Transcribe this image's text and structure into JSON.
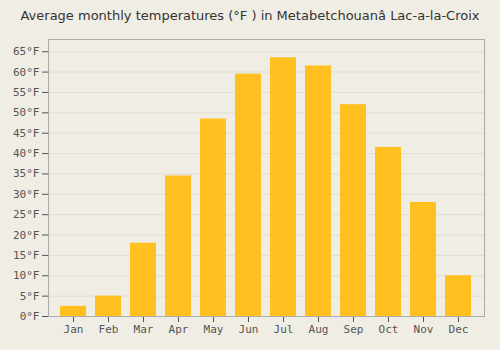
{
  "chart_data": {
    "type": "bar",
    "title": "Average monthly temperatures (°F ) in Metabetchouanâ  Lac-a-la-Croix",
    "categories": [
      "Jan",
      "Feb",
      "Mar",
      "Apr",
      "May",
      "Jun",
      "Jul",
      "Aug",
      "Sep",
      "Oct",
      "Nov",
      "Dec"
    ],
    "values": [
      2.5,
      5,
      18,
      34.5,
      48.5,
      59.5,
      63.5,
      61.5,
      52,
      41.5,
      28,
      10
    ],
    "color": "#FFC020",
    "ylim": [
      0,
      68
    ],
    "yticks": [
      {
        "value": 0,
        "label": "0°F"
      },
      {
        "value": 5,
        "label": "5°F"
      },
      {
        "value": 10,
        "label": "10°F"
      },
      {
        "value": 15,
        "label": "15°F"
      },
      {
        "value": 20,
        "label": "20°F"
      },
      {
        "value": 25,
        "label": "25°F"
      },
      {
        "value": 30,
        "label": "30°F"
      },
      {
        "value": 35,
        "label": "35°F"
      },
      {
        "value": 40,
        "label": "40°F"
      },
      {
        "value": 45,
        "label": "45°F"
      },
      {
        "value": 50,
        "label": "50°F"
      },
      {
        "value": 55,
        "label": "55°F"
      },
      {
        "value": 60,
        "label": "60°F"
      },
      {
        "value": 65,
        "label": "65°F"
      }
    ],
    "grid": true
  }
}
